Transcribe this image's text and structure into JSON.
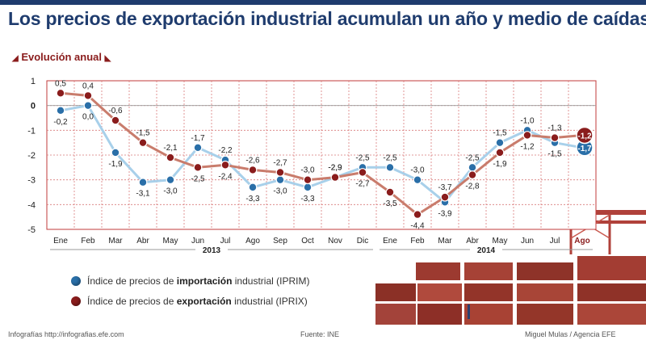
{
  "title": "Los precios de exportación industrial acumulan un año y medio de caídas",
  "subtitle": "Evolución anual",
  "legend": {
    "import_prefix": "Índice de precios de ",
    "import_bold": "importación",
    "import_suffix": " industrial (IPRIM)",
    "export_prefix": "Índice de precios de ",
    "export_bold": "exportación",
    "export_suffix": " industrial (IPRIX)"
  },
  "footer": {
    "left": "Infografías  http://infografias.efe.com",
    "center": "Fuente: INE",
    "right": "Miguel Mulas / Agencia EFE"
  },
  "colors": {
    "import_line": "#a8d0ea",
    "import_dot": "#2a6fa8",
    "export_line": "#c97c6c",
    "export_dot": "#8a1c1c",
    "title": "#1f3c6e"
  },
  "chart_data": {
    "type": "line",
    "categories": [
      "Ene",
      "Feb",
      "Mar",
      "Abr",
      "May",
      "Jun",
      "Jul",
      "Ago",
      "Sep",
      "Oct",
      "Nov",
      "Dic",
      "Ene",
      "Feb",
      "Mar",
      "Abr",
      "May",
      "Jun",
      "Jul",
      "Ago"
    ],
    "year_labels": [
      {
        "label": "2013",
        "from": 0,
        "to": 11
      },
      {
        "label": "2014",
        "from": 12,
        "to": 19
      }
    ],
    "ylim": [
      -5,
      1
    ],
    "yticks": [
      "1",
      "0",
      "-1",
      "-2",
      "-3",
      "-4",
      "-5"
    ],
    "grid": true,
    "series": [
      {
        "name": "Índice de precios de importación industrial (IPRIM)",
        "values": [
          -0.2,
          0.0,
          -1.9,
          -3.1,
          -3.0,
          -1.7,
          -2.2,
          -3.3,
          -3.0,
          -3.3,
          -2.9,
          -2.5,
          -2.5,
          -3.0,
          -3.9,
          -2.5,
          -1.5,
          -1.0,
          -1.5,
          -1.7
        ],
        "labels": [
          "-0,2",
          "0,0",
          "-1,9",
          "-3,1",
          "-3,0",
          "-1,7",
          "-2,2",
          "-3,3",
          "-3,0",
          "-3,3",
          "-2,9",
          "-2,5",
          "-2,5",
          "-3,0",
          "-3,9",
          "-2,5",
          "-1,5",
          "-1,0",
          "-1,5",
          "-1,7"
        ]
      },
      {
        "name": "Índice de precios de exportación industrial (IPRIX)",
        "values": [
          0.5,
          0.4,
          -0.6,
          -1.5,
          -2.1,
          -2.5,
          -2.4,
          -2.6,
          -2.7,
          -3.0,
          -2.9,
          -2.7,
          -3.5,
          -4.4,
          -3.7,
          -2.8,
          -1.9,
          -1.2,
          -1.3,
          -1.2
        ],
        "labels": [
          "0,5",
          "0,4",
          "-0,6",
          "-1,5",
          "-2,1",
          "-2,5",
          "-2,4",
          "-2,6",
          "-2,7",
          "-3,0",
          "-2,9",
          "-2,7",
          "-3,5",
          "-4,4",
          "-3,7",
          "-2,8",
          "-1,9",
          "-1,2",
          "-1,3",
          "-1,2"
        ]
      }
    ]
  }
}
